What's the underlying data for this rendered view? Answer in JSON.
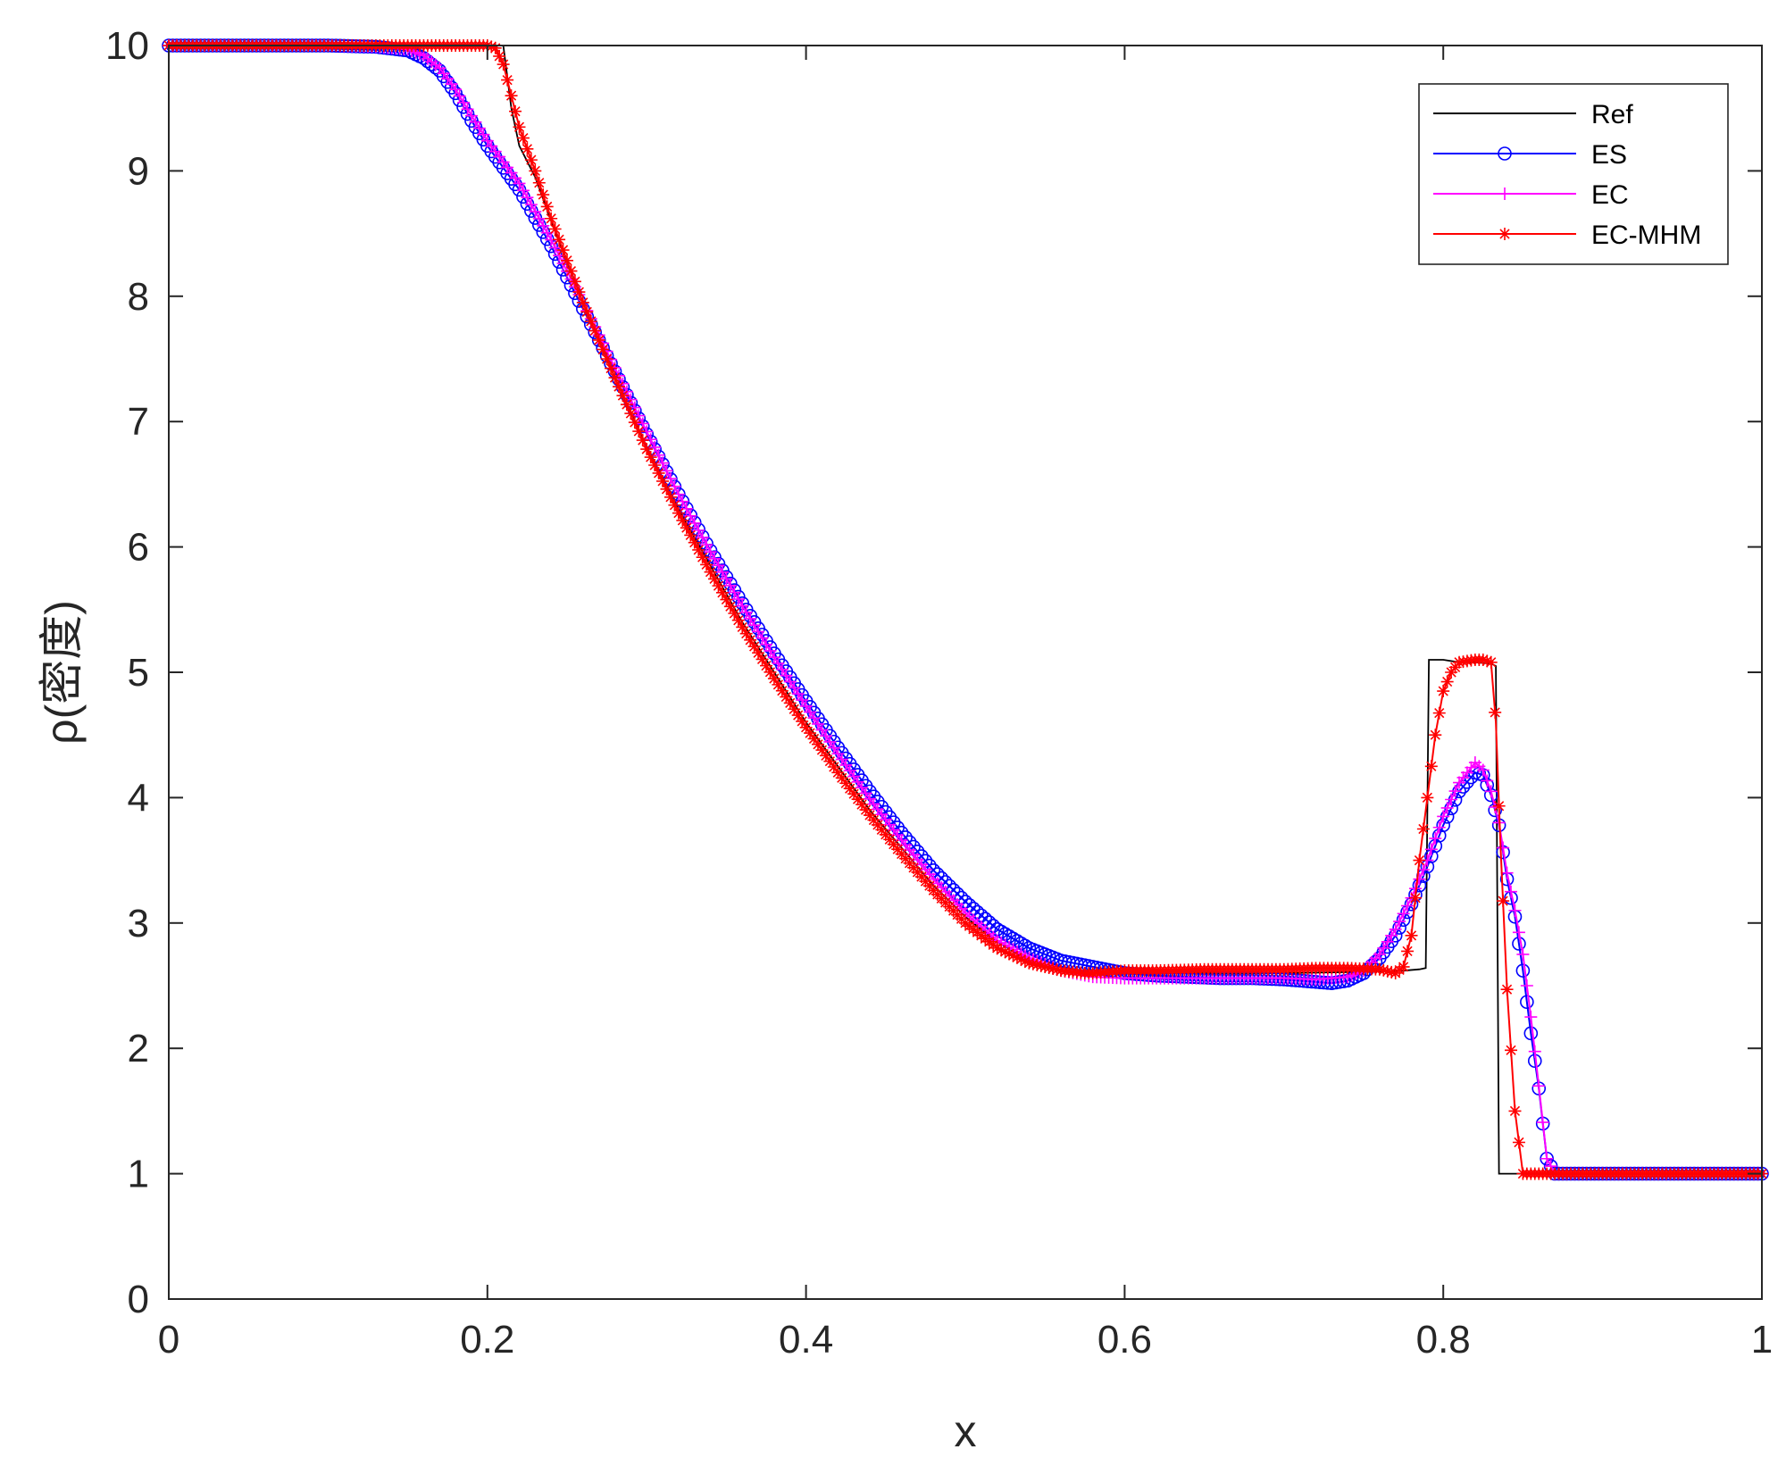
{
  "chart_data": {
    "type": "line",
    "title": "",
    "xlabel": "x",
    "ylabel": "ρ(密度)",
    "xlim": [
      0,
      1
    ],
    "ylim": [
      0,
      10
    ],
    "xticks": [
      "0",
      "0.2",
      "0.4",
      "0.6",
      "0.8",
      "1"
    ],
    "yticks": [
      "0",
      "1",
      "2",
      "3",
      "4",
      "5",
      "6",
      "7",
      "8",
      "9",
      "10"
    ],
    "grid": false,
    "legend_position": "top-right",
    "series": [
      {
        "name": "Ref",
        "color": "#000000",
        "marker": "none",
        "points": [
          [
            0,
            10
          ],
          [
            0.2,
            10
          ],
          [
            0.21,
            10
          ],
          [
            0.215,
            9.5
          ],
          [
            0.22,
            9.2
          ],
          [
            0.23,
            8.95
          ],
          [
            0.24,
            8.6
          ],
          [
            0.26,
            7.95
          ],
          [
            0.28,
            7.35
          ],
          [
            0.3,
            6.8
          ],
          [
            0.32,
            6.3
          ],
          [
            0.34,
            5.85
          ],
          [
            0.36,
            5.4
          ],
          [
            0.38,
            5.0
          ],
          [
            0.4,
            4.6
          ],
          [
            0.42,
            4.25
          ],
          [
            0.44,
            3.9
          ],
          [
            0.46,
            3.6
          ],
          [
            0.48,
            3.3
          ],
          [
            0.5,
            3.05
          ],
          [
            0.52,
            2.85
          ],
          [
            0.54,
            2.7
          ],
          [
            0.56,
            2.62
          ],
          [
            0.575,
            2.6
          ],
          [
            0.6,
            2.6
          ],
          [
            0.65,
            2.6
          ],
          [
            0.7,
            2.6
          ],
          [
            0.75,
            2.61
          ],
          [
            0.775,
            2.62
          ],
          [
            0.785,
            2.63
          ],
          [
            0.789,
            2.64
          ],
          [
            0.791,
            5.1
          ],
          [
            0.8,
            5.1
          ],
          [
            0.81,
            5.08
          ],
          [
            0.82,
            5.08
          ],
          [
            0.83,
            5.07
          ],
          [
            0.833,
            5.05
          ],
          [
            0.835,
            1.0
          ],
          [
            0.84,
            1.0
          ],
          [
            0.9,
            1.0
          ],
          [
            1.0,
            1.0
          ]
        ]
      },
      {
        "name": "ES",
        "color": "#0000ff",
        "marker": "circle",
        "points": [
          [
            0,
            10
          ],
          [
            0.05,
            10
          ],
          [
            0.1,
            10
          ],
          [
            0.13,
            9.99
          ],
          [
            0.15,
            9.96
          ],
          [
            0.16,
            9.9
          ],
          [
            0.17,
            9.8
          ],
          [
            0.18,
            9.62
          ],
          [
            0.19,
            9.4
          ],
          [
            0.2,
            9.2
          ],
          [
            0.22,
            8.85
          ],
          [
            0.24,
            8.4
          ],
          [
            0.26,
            7.9
          ],
          [
            0.28,
            7.4
          ],
          [
            0.3,
            6.9
          ],
          [
            0.32,
            6.42
          ],
          [
            0.34,
            5.97
          ],
          [
            0.36,
            5.55
          ],
          [
            0.38,
            5.15
          ],
          [
            0.4,
            4.77
          ],
          [
            0.42,
            4.4
          ],
          [
            0.44,
            4.05
          ],
          [
            0.46,
            3.72
          ],
          [
            0.48,
            3.42
          ],
          [
            0.5,
            3.17
          ],
          [
            0.52,
            2.95
          ],
          [
            0.54,
            2.8
          ],
          [
            0.56,
            2.7
          ],
          [
            0.58,
            2.65
          ],
          [
            0.6,
            2.6
          ],
          [
            0.62,
            2.58
          ],
          [
            0.64,
            2.57
          ],
          [
            0.66,
            2.56
          ],
          [
            0.68,
            2.56
          ],
          [
            0.7,
            2.55
          ],
          [
            0.72,
            2.53
          ],
          [
            0.73,
            2.52
          ],
          [
            0.74,
            2.54
          ],
          [
            0.75,
            2.6
          ],
          [
            0.76,
            2.72
          ],
          [
            0.77,
            2.9
          ],
          [
            0.78,
            3.15
          ],
          [
            0.79,
            3.45
          ],
          [
            0.8,
            3.78
          ],
          [
            0.81,
            4.05
          ],
          [
            0.82,
            4.2
          ],
          [
            0.825,
            4.18
          ],
          [
            0.83,
            4.02
          ],
          [
            0.835,
            3.78
          ],
          [
            0.84,
            3.35
          ],
          [
            0.845,
            3.05
          ],
          [
            0.85,
            2.62
          ],
          [
            0.855,
            2.12
          ],
          [
            0.86,
            1.68
          ],
          [
            0.865,
            1.12
          ],
          [
            0.87,
            1.0
          ],
          [
            0.88,
            1.0
          ],
          [
            0.9,
            1.0
          ],
          [
            1.0,
            1.0
          ]
        ]
      },
      {
        "name": "EC",
        "color": "#ff00ff",
        "marker": "plus",
        "points": [
          [
            0,
            10
          ],
          [
            0.05,
            10
          ],
          [
            0.1,
            10
          ],
          [
            0.13,
            9.99
          ],
          [
            0.15,
            9.97
          ],
          [
            0.16,
            9.92
          ],
          [
            0.17,
            9.82
          ],
          [
            0.18,
            9.65
          ],
          [
            0.19,
            9.44
          ],
          [
            0.2,
            9.24
          ],
          [
            0.22,
            8.9
          ],
          [
            0.24,
            8.45
          ],
          [
            0.26,
            7.95
          ],
          [
            0.28,
            7.43
          ],
          [
            0.3,
            6.92
          ],
          [
            0.32,
            6.42
          ],
          [
            0.34,
            5.96
          ],
          [
            0.36,
            5.53
          ],
          [
            0.38,
            5.12
          ],
          [
            0.4,
            4.73
          ],
          [
            0.42,
            4.35
          ],
          [
            0.44,
            3.99
          ],
          [
            0.46,
            3.66
          ],
          [
            0.48,
            3.35
          ],
          [
            0.5,
            3.08
          ],
          [
            0.52,
            2.86
          ],
          [
            0.54,
            2.72
          ],
          [
            0.56,
            2.62
          ],
          [
            0.58,
            2.57
          ],
          [
            0.6,
            2.56
          ],
          [
            0.62,
            2.56
          ],
          [
            0.64,
            2.56
          ],
          [
            0.66,
            2.56
          ],
          [
            0.68,
            2.56
          ],
          [
            0.7,
            2.56
          ],
          [
            0.72,
            2.55
          ],
          [
            0.74,
            2.57
          ],
          [
            0.75,
            2.62
          ],
          [
            0.76,
            2.75
          ],
          [
            0.77,
            2.95
          ],
          [
            0.78,
            3.2
          ],
          [
            0.79,
            3.5
          ],
          [
            0.8,
            3.85
          ],
          [
            0.81,
            4.12
          ],
          [
            0.82,
            4.28
          ],
          [
            0.825,
            4.22
          ],
          [
            0.83,
            4.05
          ],
          [
            0.835,
            3.8
          ],
          [
            0.84,
            3.4
          ],
          [
            0.845,
            3.1
          ],
          [
            0.85,
            2.75
          ],
          [
            0.855,
            2.25
          ],
          [
            0.86,
            1.7
          ],
          [
            0.865,
            1.12
          ],
          [
            0.87,
            1.0
          ],
          [
            0.88,
            1.0
          ],
          [
            0.9,
            1.0
          ],
          [
            1.0,
            1.0
          ]
        ]
      },
      {
        "name": "EC-MHM",
        "color": "#ff0000",
        "marker": "asterisk",
        "points": [
          [
            0,
            10
          ],
          [
            0.1,
            10
          ],
          [
            0.15,
            10
          ],
          [
            0.18,
            10
          ],
          [
            0.2,
            10
          ],
          [
            0.205,
            9.98
          ],
          [
            0.21,
            9.85
          ],
          [
            0.215,
            9.6
          ],
          [
            0.22,
            9.35
          ],
          [
            0.23,
            9.0
          ],
          [
            0.24,
            8.62
          ],
          [
            0.26,
            7.95
          ],
          [
            0.28,
            7.35
          ],
          [
            0.3,
            6.78
          ],
          [
            0.32,
            6.27
          ],
          [
            0.34,
            5.8
          ],
          [
            0.36,
            5.36
          ],
          [
            0.38,
            4.95
          ],
          [
            0.4,
            4.56
          ],
          [
            0.42,
            4.2
          ],
          [
            0.44,
            3.86
          ],
          [
            0.46,
            3.55
          ],
          [
            0.48,
            3.26
          ],
          [
            0.5,
            3.0
          ],
          [
            0.52,
            2.8
          ],
          [
            0.54,
            2.68
          ],
          [
            0.56,
            2.62
          ],
          [
            0.575,
            2.6
          ],
          [
            0.58,
            2.6
          ],
          [
            0.6,
            2.62
          ],
          [
            0.62,
            2.62
          ],
          [
            0.65,
            2.63
          ],
          [
            0.7,
            2.63
          ],
          [
            0.72,
            2.64
          ],
          [
            0.74,
            2.64
          ],
          [
            0.76,
            2.63
          ],
          [
            0.77,
            2.6
          ],
          [
            0.775,
            2.65
          ],
          [
            0.78,
            2.9
          ],
          [
            0.785,
            3.5
          ],
          [
            0.79,
            4.0
          ],
          [
            0.795,
            4.5
          ],
          [
            0.8,
            4.85
          ],
          [
            0.805,
            5.0
          ],
          [
            0.81,
            5.08
          ],
          [
            0.82,
            5.1
          ],
          [
            0.825,
            5.1
          ],
          [
            0.83,
            5.08
          ],
          [
            0.833,
            4.6
          ],
          [
            0.836,
            3.6
          ],
          [
            0.84,
            2.47
          ],
          [
            0.845,
            1.5
          ],
          [
            0.85,
            1.0
          ],
          [
            0.86,
            1.0
          ],
          [
            0.9,
            1.0
          ],
          [
            1.0,
            1.0
          ]
        ]
      }
    ]
  }
}
